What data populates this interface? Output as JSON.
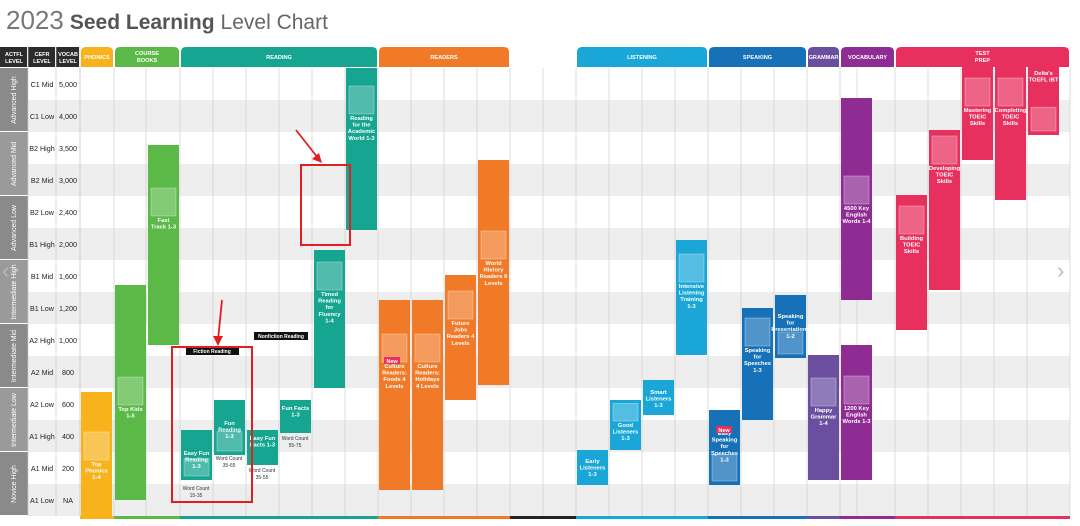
{
  "title": {
    "year": "2023",
    "brand": "Seed Learning",
    "subtitle": "Level Chart"
  },
  "left_headers": [
    "ACTFL LEVEL",
    "CEFR LEVEL",
    "VOCAB LEVEL"
  ],
  "actfl_levels": [
    "Advanced High",
    "Advanced Mid",
    "Advanced Low",
    "Intermediate High",
    "Intermediate Mid",
    "Intermediate Low",
    "Novice High"
  ],
  "rows": [
    {
      "cefr": "C1 Mid",
      "vocab": "5,000"
    },
    {
      "cefr": "C1 Low",
      "vocab": "4,000"
    },
    {
      "cefr": "B2 High",
      "vocab": "3,500"
    },
    {
      "cefr": "B2 Mid",
      "vocab": "3,000"
    },
    {
      "cefr": "B2 Low",
      "vocab": "2,400"
    },
    {
      "cefr": "B1 High",
      "vocab": "2,000"
    },
    {
      "cefr": "B1 Mid",
      "vocab": "1,600"
    },
    {
      "cefr": "B1 Low",
      "vocab": "1,200"
    },
    {
      "cefr": "A2 High",
      "vocab": "1,000"
    },
    {
      "cefr": "A2 Mid",
      "vocab": "800"
    },
    {
      "cefr": "A2 Low",
      "vocab": "600"
    },
    {
      "cefr": "A1 High",
      "vocab": "400"
    },
    {
      "cefr": "A1 Mid",
      "vocab": "200"
    },
    {
      "cefr": "A1 Low",
      "vocab": "NA"
    }
  ],
  "categories": [
    {
      "label": "PHONICS",
      "color": "#f7b21c"
    },
    {
      "label": "COURSE BOOKS",
      "color": "#5ab947"
    },
    {
      "label": "READING",
      "color": "#16a591"
    },
    {
      "label": "READERS",
      "color": "#f07a27"
    },
    {
      "label": "",
      "color": "#222222"
    },
    {
      "label": "LISTENING",
      "color": "#1aa7d8"
    },
    {
      "label": "SPEAKING",
      "color": "#1671b8"
    },
    {
      "label": "GRAMMAR",
      "color": "#6a4fa1"
    },
    {
      "label": "VOCABULARY",
      "color": "#8e2c93"
    },
    {
      "label": "TEST PREP",
      "color": "#e8305e"
    }
  ],
  "sublabels": {
    "fiction": "Fiction Reading",
    "nonfiction": "Nonfiction Reading",
    "new1": "New",
    "new2": "New"
  },
  "bars": [
    {
      "label": "Top Phonics 1-4",
      "color": "#f7b21c"
    },
    {
      "label": "Top Kids 1-6",
      "color": "#5ab947"
    },
    {
      "label": "Fast Track 1-3",
      "color": "#5ab947"
    },
    {
      "label": "Easy Fun Reading 1-3",
      "color": "#16a591"
    },
    {
      "label": "Fun Reading 1-3",
      "color": "#16a591"
    },
    {
      "label": "Easy Fun Facts 1-3",
      "color": "#16a591"
    },
    {
      "label": "Fun Facts 1-3",
      "color": "#16a591"
    },
    {
      "label": "Timed Reading for Fluency 1-4",
      "color": "#16a591"
    },
    {
      "label": "Reading for the Academic World 1-3",
      "color": "#16a591"
    },
    {
      "label": "Culture Readers: Foods 4 Levels",
      "color": "#f07a27"
    },
    {
      "label": "Culture Readers: Holidays 4 Levels",
      "color": "#f07a27"
    },
    {
      "label": "Future Jobs Readers 4 Levels",
      "color": "#f07a27"
    },
    {
      "label": "World History Readers 6 Levels",
      "color": "#f07a27"
    },
    {
      "label": "Early Listeners 1-3",
      "color": "#1aa7d8"
    },
    {
      "label": "Good Listeners 1-3",
      "color": "#1aa7d8"
    },
    {
      "label": "Smart Listeners 1-3",
      "color": "#1aa7d8"
    },
    {
      "label": "Intensive Listening Training 1-3",
      "color": "#1aa7d8"
    },
    {
      "label": "Easy Speaking for Speeches 1-3",
      "color": "#1671b8"
    },
    {
      "label": "Speaking for Speeches 1-3",
      "color": "#1671b8"
    },
    {
      "label": "Speaking for Presentations 1-2",
      "color": "#1671b8"
    },
    {
      "label": "Happy Grammar 1-4",
      "color": "#6a4fa1"
    },
    {
      "label": "1200 Key English Words 1-3",
      "color": "#8e2c93"
    },
    {
      "label": "4500 Key English Words 1-4",
      "color": "#8e2c93"
    },
    {
      "label": "Building TOEIC Skills",
      "color": "#e8305e"
    },
    {
      "label": "Developing TOEIC Skills",
      "color": "#e8305e"
    },
    {
      "label": "Mastering TOEIC Skills",
      "color": "#e8305e"
    },
    {
      "label": "Completing TOEIC Skills",
      "color": "#e8305e"
    },
    {
      "label": "Delta's TOEFL iBT",
      "color": "#e8305e"
    }
  ],
  "word_counts": [
    "Word Count 15-35",
    "Word Count 35-65",
    "Word Count 35-55",
    "Word Count 55-75"
  ]
}
